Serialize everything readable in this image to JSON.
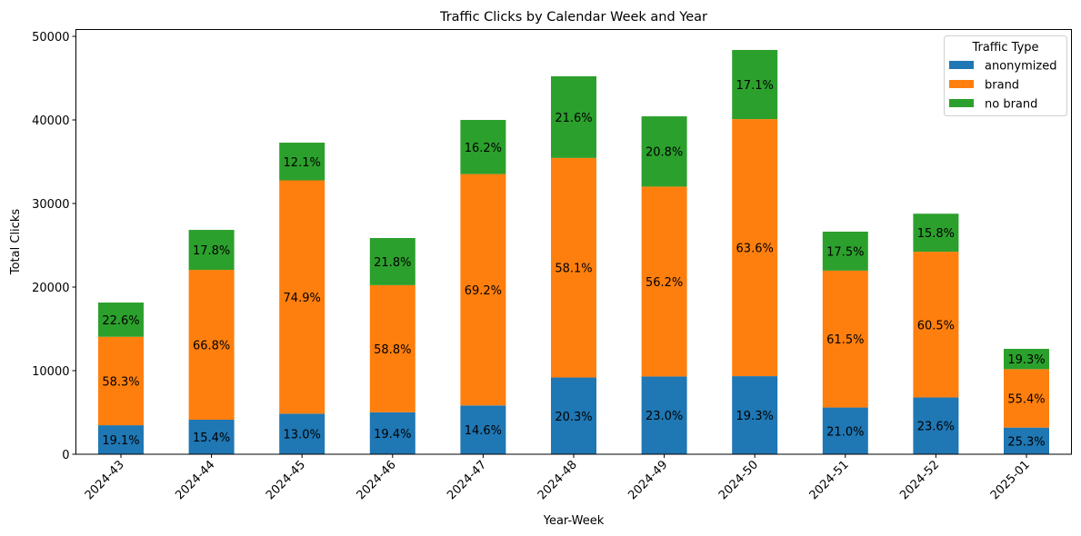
{
  "chart_data": {
    "type": "bar",
    "stacked": true,
    "title": "Traffic Clicks by Calendar Week and Year",
    "xlabel": "Year-Week",
    "ylabel": "Total Clicks",
    "ylim": [
      0,
      51000
    ],
    "yticks": [
      0,
      10000,
      20000,
      30000,
      40000,
      50000
    ],
    "grid": false,
    "categories": [
      "2024-43",
      "2024-44",
      "2024-45",
      "2024-46",
      "2024-47",
      "2024-48",
      "2024-49",
      "2024-50",
      "2024-51",
      "2024-52",
      "2025-01"
    ],
    "series": [
      {
        "name": "anonymized",
        "color": "#1f77b4",
        "values": [
          3470,
          4130,
          4850,
          5020,
          5840,
          9180,
          9300,
          9340,
          5590,
          6800,
          3190
        ],
        "labels": [
          "19.1%",
          "15.4%",
          "13.0%",
          "19.4%",
          "14.6%",
          "20.3%",
          "23.0%",
          "19.3%",
          "21.0%",
          "23.6%",
          "25.3%"
        ]
      },
      {
        "name": "brand",
        "color": "#ff7f0e",
        "values": [
          10580,
          17930,
          27920,
          15210,
          27680,
          26270,
          22720,
          30760,
          16380,
          17430,
          6990
        ],
        "labels": [
          "58.3%",
          "66.8%",
          "74.9%",
          "58.8%",
          "69.2%",
          "58.1%",
          "56.2%",
          "63.6%",
          "61.5%",
          "60.5%",
          "55.4%"
        ]
      },
      {
        "name": "no brand",
        "color": "#2ca02c",
        "values": [
          4100,
          4780,
          4510,
          5640,
          6480,
          9770,
          8410,
          8270,
          4660,
          4550,
          2430
        ],
        "labels": [
          "22.6%",
          "17.8%",
          "12.1%",
          "21.8%",
          "16.2%",
          "21.6%",
          "20.8%",
          "17.1%",
          "17.5%",
          "15.8%",
          "19.3%"
        ]
      }
    ],
    "legend": {
      "title": "Traffic Type",
      "position": "top-right"
    }
  }
}
